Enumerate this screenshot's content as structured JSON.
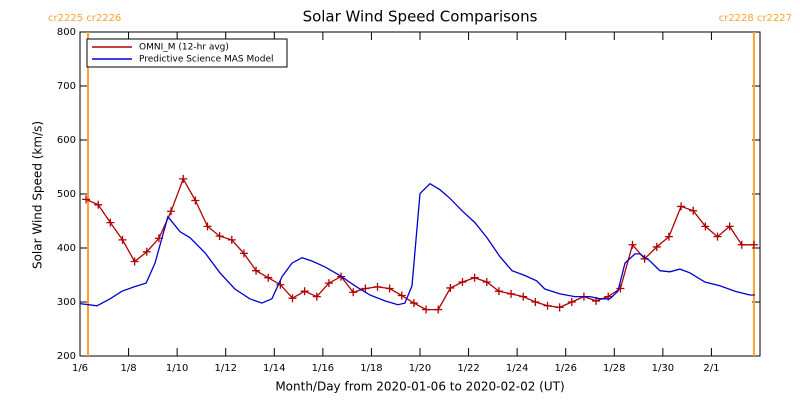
{
  "chart_data": {
    "type": "line",
    "title": "Solar Wind Speed Comparisons",
    "xlabel": "Month/Day from 2020-01-06 to 2020-02-02 (UT)",
    "ylabel": "Solar Wind Speed (km/s)",
    "xlim": [
      0,
      28
    ],
    "ylim": [
      200,
      800
    ],
    "xticks": [
      {
        "value": 0,
        "label": "1/6"
      },
      {
        "value": 2,
        "label": "1/8"
      },
      {
        "value": 4,
        "label": "1/10"
      },
      {
        "value": 6,
        "label": "1/12"
      },
      {
        "value": 8,
        "label": "1/14"
      },
      {
        "value": 10,
        "label": "1/16"
      },
      {
        "value": 12,
        "label": "1/18"
      },
      {
        "value": 14,
        "label": "1/20"
      },
      {
        "value": 16,
        "label": "1/22"
      },
      {
        "value": 18,
        "label": "1/24"
      },
      {
        "value": 20,
        "label": "1/26"
      },
      {
        "value": 22,
        "label": "1/28"
      },
      {
        "value": 24,
        "label": "1/30"
      },
      {
        "value": 26,
        "label": "2/1"
      }
    ],
    "yticks": [
      200,
      300,
      400,
      500,
      600,
      700,
      800
    ],
    "legend": "upper left",
    "annotations": [
      {
        "text": "cr2225 cr2226",
        "x": 0.33,
        "color": "#ffa030"
      },
      {
        "text": "cr2228 cr2227",
        "x": 27.75,
        "color": "#ffa030"
      }
    ],
    "series": [
      {
        "name": "OMNI_M (12-hr avg)",
        "color": "#b00000",
        "marker": "+",
        "x": [
          0.25,
          0.75,
          1.25,
          1.75,
          2.25,
          2.75,
          3.25,
          3.75,
          4.25,
          4.75,
          5.25,
          5.75,
          6.25,
          6.75,
          7.25,
          7.75,
          8.25,
          8.75,
          9.25,
          9.75,
          10.25,
          10.75,
          11.25,
          11.75,
          12.25,
          12.75,
          13.25,
          13.75,
          14.25,
          14.75,
          15.25,
          15.75,
          16.25,
          16.75,
          17.25,
          17.75,
          18.25,
          18.75,
          19.25,
          19.75,
          20.25,
          20.75,
          21.25,
          21.75,
          22.25,
          22.75,
          23.25,
          23.75,
          24.25,
          24.75,
          25.25,
          25.75,
          26.25,
          26.75,
          27.25,
          27.75
        ],
        "values": [
          490,
          480,
          447,
          415,
          375,
          393,
          418,
          468,
          528,
          488,
          440,
          422,
          415,
          390,
          358,
          345,
          332,
          307,
          320,
          310,
          335,
          347,
          318,
          325,
          328,
          325,
          312,
          298,
          286,
          286,
          326,
          337,
          345,
          337,
          320,
          315,
          310,
          300,
          293,
          290,
          300,
          310,
          302,
          310,
          325,
          406,
          380,
          402,
          421,
          477,
          469,
          440,
          421,
          440,
          406,
          406
        ]
      },
      {
        "name": "Predictive Science MAS Model",
        "color": "#0000d0",
        "x": [
          0,
          0.7,
          1.24,
          1.73,
          2.22,
          2.72,
          3.09,
          3.62,
          4.12,
          4.53,
          5.15,
          5.76,
          6.38,
          6.99,
          7.49,
          7.9,
          8.32,
          8.73,
          9.14,
          9.55,
          10.09,
          10.7,
          11.32,
          11.94,
          12.56,
          13.09,
          13.38,
          13.67,
          14.0,
          14.41,
          14.82,
          15.23,
          15.73,
          16.26,
          16.76,
          17.29,
          17.79,
          18.32,
          18.81,
          19.14,
          19.76,
          20.38,
          21.0,
          21.41,
          21.82,
          22.15,
          22.44,
          22.85,
          23.05,
          23.47,
          23.88,
          24.29,
          24.7,
          25.11,
          25.73,
          26.35,
          26.97,
          27.58,
          27.79
        ],
        "values": [
          297,
          293,
          306,
          320,
          328,
          335,
          372,
          458,
          430,
          419,
          391,
          354,
          324,
          306,
          298,
          306,
          347,
          372,
          382,
          376,
          365,
          349,
          330,
          313,
          302,
          295,
          298,
          330,
          501,
          519,
          508,
          492,
          469,
          447,
          419,
          384,
          358,
          349,
          339,
          324,
          315,
          310,
          310,
          306,
          306,
          320,
          372,
          389,
          389,
          376,
          358,
          356,
          361,
          354,
          337,
          330,
          320,
          313,
          313
        ]
      }
    ]
  }
}
